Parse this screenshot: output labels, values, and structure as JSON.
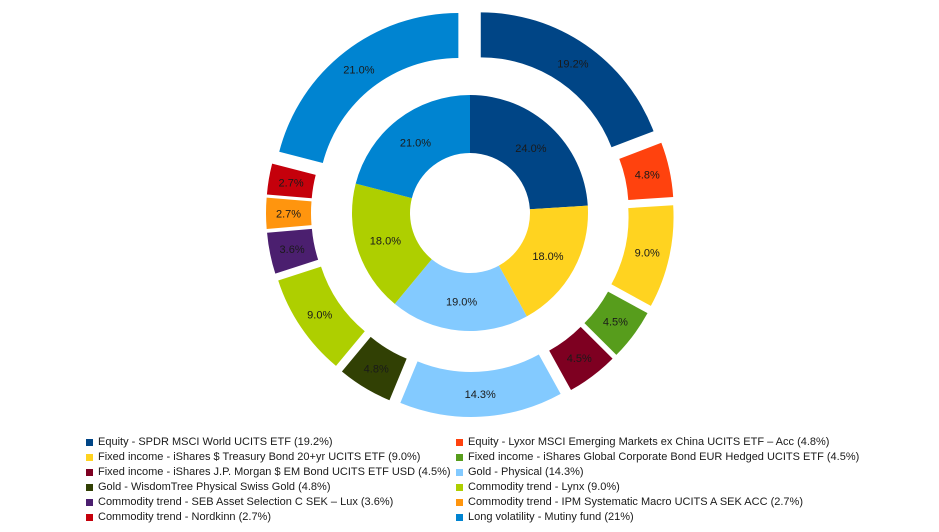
{
  "chart_data": {
    "type": "pie",
    "subtype": "double-donut-exploded",
    "legend_position": "bottom",
    "outer_ring": {
      "series": [
        {
          "name": "Equity - SPDR MSCI World UCITS ETF (19.2%)",
          "value": 19.2,
          "label": "19.2%",
          "color": "#004586"
        },
        {
          "name": "Equity - Lyxor MSCI Emerging Markets ex China UCITS ETF – Acc (4.8%)",
          "value": 4.8,
          "label": "4.8%",
          "color": "#ff420e"
        },
        {
          "name": "Fixed income - iShares $ Treasury Bond 20+yr UCITS ETF (9.0%)",
          "value": 9.0,
          "label": "9.0%",
          "color": "#ffd320"
        },
        {
          "name": "Fixed income - iShares Global Corporate Bond EUR Hedged UCITS ETF (4.5%)",
          "value": 4.5,
          "label": "4.5%",
          "color": "#579d1c"
        },
        {
          "name": "Fixed income - iShares J.P. Morgan $ EM Bond UCITS ETF USD (4.5%)",
          "value": 4.5,
          "label": "4.5%",
          "color": "#7e0021"
        },
        {
          "name": "Gold - Physical (14.3%)",
          "value": 14.3,
          "label": "14.3%",
          "color": "#83caff"
        },
        {
          "name": "Gold - WisdomTree Physical Swiss Gold (4.8%)",
          "value": 4.8,
          "label": "4.8%",
          "color": "#314004"
        },
        {
          "name": "Commodity trend - Lynx (9.0%)",
          "value": 9.0,
          "label": "9.0%",
          "color": "#aecf00"
        },
        {
          "name": "Commodity trend - SEB Asset Selection C SEK – Lux (3.6%)",
          "value": 3.6,
          "label": "3.6%",
          "color": "#4b1f6f"
        },
        {
          "name": "Commodity trend - IPM Systematic Macro UCITS A SEK ACC (2.7%)",
          "value": 2.7,
          "label": "2.7%",
          "color": "#ff950e"
        },
        {
          "name": "Commodity trend - Nordkinn (2.7%)",
          "value": 2.7,
          "label": "2.7%",
          "color": "#c5000b"
        },
        {
          "name": "Long volatility - Mutiny fund (21%)",
          "value": 21.0,
          "label": "21.0%",
          "color": "#0084d1"
        }
      ]
    },
    "inner_ring": {
      "series": [
        {
          "value": 24.0,
          "label": "24.0%",
          "color": "#004586"
        },
        {
          "value": 18.0,
          "label": "18.0%",
          "color": "#ffd320"
        },
        {
          "value": 19.0,
          "label": "19.0%",
          "color": "#83caff"
        },
        {
          "value": 18.0,
          "label": "18.0%",
          "color": "#aecf00"
        },
        {
          "value": 21.0,
          "label": "21.0%",
          "color": "#0084d1"
        }
      ]
    }
  }
}
